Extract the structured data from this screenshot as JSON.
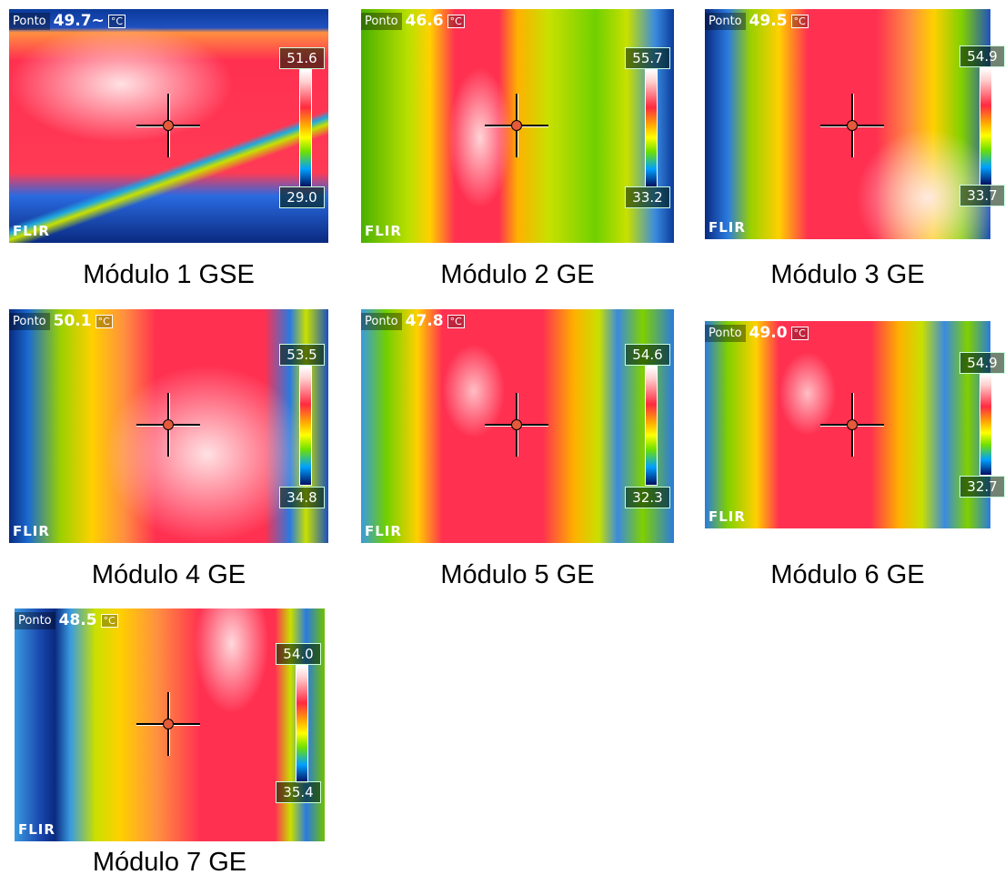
{
  "common": {
    "spot_label": "Ponto",
    "unit": "°C",
    "brand": "FLIR"
  },
  "modules": [
    {
      "caption": "Módulo 1 GSE",
      "spot_value": "49.7~",
      "range_max": "51.6",
      "range_min": "29.0"
    },
    {
      "caption": "Módulo 2 GE",
      "spot_value": "46.6",
      "range_max": "55.7",
      "range_min": "33.2"
    },
    {
      "caption": "Módulo 3 GE",
      "spot_value": "49.5",
      "range_max": "54.9",
      "range_min": "33.7"
    },
    {
      "caption": "Módulo 4 GE",
      "spot_value": "50.1",
      "range_max": "53.5",
      "range_min": "34.8"
    },
    {
      "caption": "Módulo 5 GE",
      "spot_value": "47.8",
      "range_max": "54.6",
      "range_min": "32.3"
    },
    {
      "caption": "Módulo 6 GE",
      "spot_value": "49.0",
      "range_max": "54.9",
      "range_min": "32.7"
    },
    {
      "caption": "Módulo 7 GE",
      "spot_value": "48.5",
      "range_max": "54.0",
      "range_min": "35.4"
    }
  ]
}
